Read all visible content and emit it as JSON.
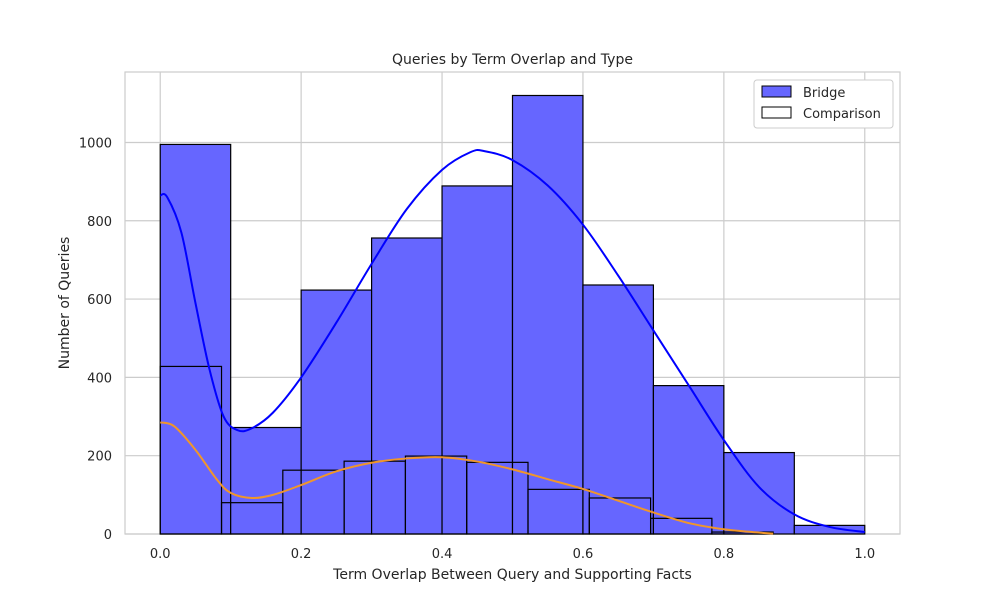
{
  "chart_data": {
    "type": "bar",
    "title": "Queries by Term Overlap and Type",
    "xlabel": "Term Overlap Between Query and Supporting Facts",
    "ylabel": "Number of Queries",
    "xlim": [
      -0.05,
      1.05
    ],
    "ylim": [
      0,
      1180
    ],
    "xticks": [
      0.0,
      0.2,
      0.4,
      0.6,
      0.8,
      1.0
    ],
    "xtick_labels": [
      "0.0",
      "0.2",
      "0.4",
      "0.6",
      "0.8",
      "1.0"
    ],
    "yticks": [
      0,
      200,
      400,
      600,
      800,
      1000
    ],
    "ytick_labels": [
      "0",
      "200",
      "400",
      "600",
      "800",
      "1000"
    ],
    "grid": true,
    "legend_position": "top-right",
    "series": [
      {
        "name": "Bridge",
        "fill": "#6666ff",
        "edge": "#000000",
        "kde_color": "#0000ff",
        "bins": [
          {
            "x0": 0.0,
            "x1": 0.1,
            "value": 995
          },
          {
            "x0": 0.1,
            "x1": 0.2,
            "value": 272
          },
          {
            "x0": 0.2,
            "x1": 0.3,
            "value": 623
          },
          {
            "x0": 0.3,
            "x1": 0.4,
            "value": 756
          },
          {
            "x0": 0.4,
            "x1": 0.5,
            "value": 889
          },
          {
            "x0": 0.5,
            "x1": 0.6,
            "value": 1120
          },
          {
            "x0": 0.6,
            "x1": 0.7,
            "value": 636
          },
          {
            "x0": 0.7,
            "x1": 0.8,
            "value": 379
          },
          {
            "x0": 0.8,
            "x1": 0.9,
            "value": 208
          },
          {
            "x0": 0.9,
            "x1": 1.0,
            "value": 22
          }
        ],
        "kde": [
          [
            0.0,
            865
          ],
          [
            0.01,
            860
          ],
          [
            0.03,
            770
          ],
          [
            0.05,
            590
          ],
          [
            0.07,
            420
          ],
          [
            0.09,
            300
          ],
          [
            0.11,
            265
          ],
          [
            0.13,
            270
          ],
          [
            0.16,
            310
          ],
          [
            0.2,
            400
          ],
          [
            0.25,
            540
          ],
          [
            0.3,
            690
          ],
          [
            0.35,
            830
          ],
          [
            0.4,
            930
          ],
          [
            0.44,
            975
          ],
          [
            0.46,
            978
          ],
          [
            0.5,
            955
          ],
          [
            0.55,
            890
          ],
          [
            0.6,
            790
          ],
          [
            0.65,
            660
          ],
          [
            0.7,
            520
          ],
          [
            0.75,
            380
          ],
          [
            0.8,
            240
          ],
          [
            0.85,
            120
          ],
          [
            0.9,
            50
          ],
          [
            0.95,
            18
          ],
          [
            1.0,
            5
          ]
        ]
      },
      {
        "name": "Comparison",
        "fill": "none",
        "edge": "#000000",
        "kde_color": "#f0962b",
        "bins": [
          {
            "x0": 0.0,
            "x1": 0.087,
            "value": 428
          },
          {
            "x0": 0.087,
            "x1": 0.174,
            "value": 80
          },
          {
            "x0": 0.174,
            "x1": 0.261,
            "value": 163
          },
          {
            "x0": 0.261,
            "x1": 0.348,
            "value": 186
          },
          {
            "x0": 0.348,
            "x1": 0.435,
            "value": 199
          },
          {
            "x0": 0.435,
            "x1": 0.522,
            "value": 183
          },
          {
            "x0": 0.522,
            "x1": 0.609,
            "value": 114
          },
          {
            "x0": 0.609,
            "x1": 0.696,
            "value": 92
          },
          {
            "x0": 0.696,
            "x1": 0.783,
            "value": 40
          },
          {
            "x0": 0.783,
            "x1": 0.87,
            "value": 5
          }
        ],
        "kde": [
          [
            0.0,
            285
          ],
          [
            0.02,
            275
          ],
          [
            0.05,
            215
          ],
          [
            0.08,
            140
          ],
          [
            0.1,
            105
          ],
          [
            0.13,
            92
          ],
          [
            0.16,
            100
          ],
          [
            0.2,
            125
          ],
          [
            0.25,
            160
          ],
          [
            0.3,
            182
          ],
          [
            0.35,
            193
          ],
          [
            0.4,
            196
          ],
          [
            0.45,
            185
          ],
          [
            0.5,
            165
          ],
          [
            0.55,
            140
          ],
          [
            0.6,
            115
          ],
          [
            0.65,
            85
          ],
          [
            0.7,
            55
          ],
          [
            0.75,
            28
          ],
          [
            0.8,
            12
          ],
          [
            0.84,
            5
          ],
          [
            0.87,
            1
          ]
        ]
      }
    ]
  }
}
